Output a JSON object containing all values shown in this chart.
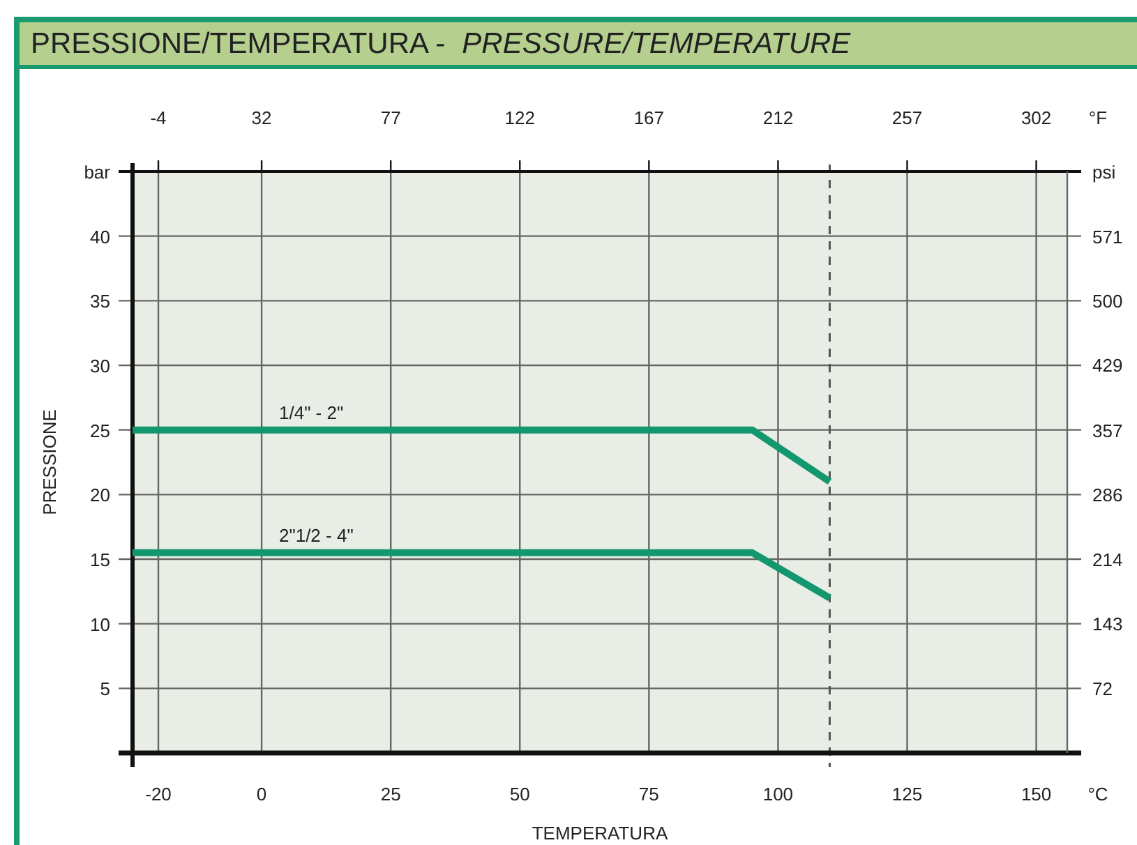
{
  "chart_data": {
    "type": "line",
    "title": "PRESSIONE/TEMPERATURA  -",
    "subtitle": "PRESSURE/TEMPERATURE",
    "xlabel": "TEMPERATURA",
    "ylabel": "PRESSIONE",
    "x2label": "°F",
    "y2label": "psi",
    "annotations": [
      "bar",
      "°C"
    ],
    "xlim": [
      -25,
      156
    ],
    "xticks": [
      -20,
      0,
      25,
      50,
      75,
      100,
      125,
      150
    ],
    "x2lim": [
      -13,
      312.8
    ],
    "x2ticks": [
      -4,
      32,
      77,
      122,
      167,
      212,
      257,
      302
    ],
    "ylim": [
      0,
      45
    ],
    "yticks": [
      5,
      10,
      15,
      20,
      25,
      30,
      35,
      40
    ],
    "y2lim": [
      0,
      642.6
    ],
    "y2ticks": [
      72,
      143,
      214,
      286,
      357,
      429,
      500,
      571
    ],
    "grid": true,
    "marker": "none",
    "line_style": "solid",
    "ref_lines": [
      {
        "axis": "x",
        "value": 110,
        "line_style": "dashed",
        "color": "#555555"
      }
    ],
    "series": [
      {
        "name": "1/4\" - 2\"",
        "color": "#13976f",
        "x": [
          -25,
          95,
          110
        ],
        "values": [
          25,
          25,
          21
        ]
      },
      {
        "name": "2\"1/2  - 4\"",
        "color": "#13976f",
        "x": [
          -25,
          95,
          110
        ],
        "values": [
          15.5,
          15.5,
          12
        ]
      }
    ]
  }
}
